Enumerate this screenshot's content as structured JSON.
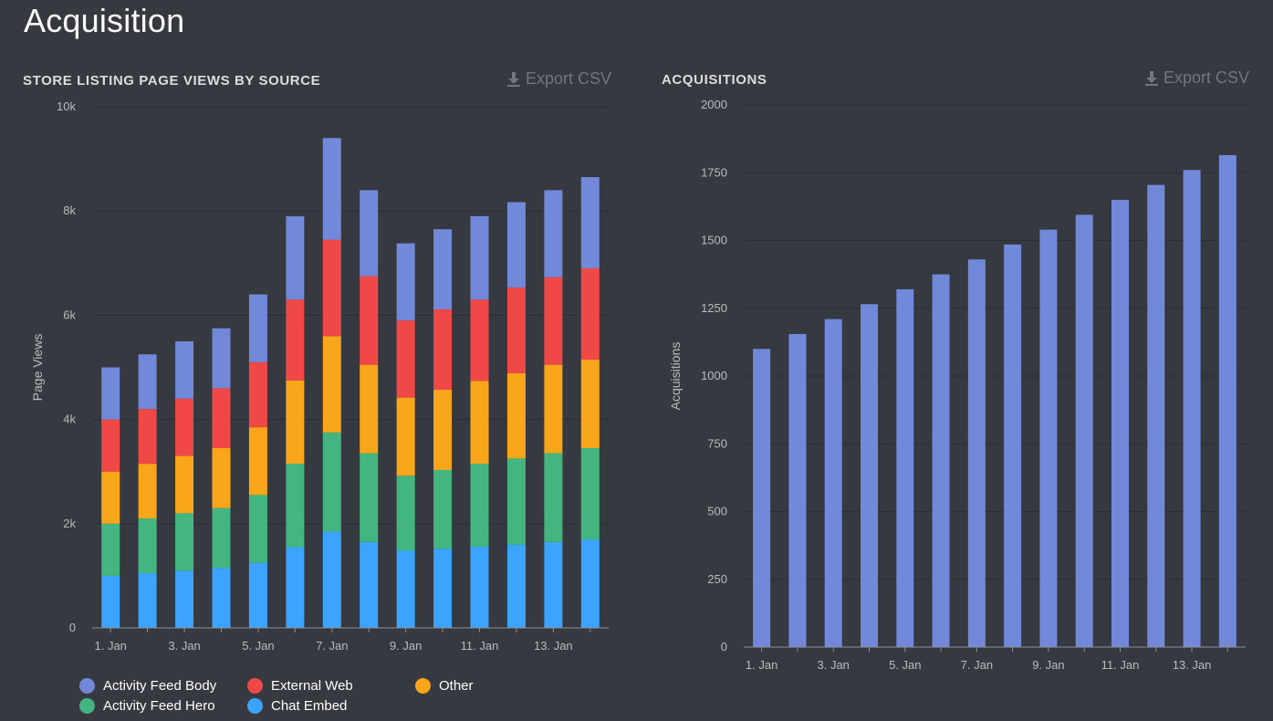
{
  "page": {
    "title": "Acquisition"
  },
  "export_label": "Export CSV",
  "colors": {
    "background": "#36393f",
    "grid": "#2b2e33",
    "axis": "#8e9297",
    "activity_feed_body": "#7289da",
    "external_web": "#f04747",
    "other": "#faa61a",
    "activity_feed_hero": "#43b581",
    "chat_embed": "#3ca4ff"
  },
  "legend": [
    {
      "label": "Activity Feed Body",
      "color": "#7289da"
    },
    {
      "label": "External Web",
      "color": "#f04747"
    },
    {
      "label": "Other",
      "color": "#faa61a"
    },
    {
      "label": "Activity Feed Hero",
      "color": "#43b581"
    },
    {
      "label": "Chat Embed",
      "color": "#3ca4ff"
    }
  ],
  "chart_data": [
    {
      "type": "bar",
      "stacked": true,
      "title": "STORE LISTING PAGE VIEWS BY SOURCE",
      "xlabel": "",
      "ylabel": "Page Views",
      "ylim": [
        0,
        10000
      ],
      "yticks": [
        0,
        2000,
        4000,
        6000,
        8000,
        10000
      ],
      "ytick_labels": [
        "0",
        "2k",
        "4k",
        "6k",
        "8k",
        "10k"
      ],
      "categories": [
        "1. Jan",
        "2. Jan",
        "3. Jan",
        "4. Jan",
        "5. Jan",
        "6. Jan",
        "7. Jan",
        "8. Jan",
        "9. Jan",
        "10. Jan",
        "11. Jan",
        "12. Jan",
        "13. Jan",
        "14. Jan"
      ],
      "xtick_labels": [
        "1. Jan",
        "",
        "3. Jan",
        "",
        "5. Jan",
        "",
        "7. Jan",
        "",
        "9. Jan",
        "",
        "11. Jan",
        "",
        "13. Jan",
        ""
      ],
      "series": [
        {
          "name": "Chat Embed",
          "color": "#3ca4ff",
          "values": [
            1000,
            1050,
            1100,
            1150,
            1250,
            1550,
            1850,
            1650,
            1480,
            1520,
            1560,
            1600,
            1650,
            1700
          ]
        },
        {
          "name": "Activity Feed Hero",
          "color": "#43b581",
          "values": [
            1000,
            1050,
            1100,
            1150,
            1300,
            1600,
            1900,
            1700,
            1440,
            1510,
            1590,
            1650,
            1700,
            1750
          ]
        },
        {
          "name": "Other",
          "color": "#faa61a",
          "values": [
            1000,
            1050,
            1100,
            1150,
            1300,
            1600,
            1850,
            1700,
            1500,
            1540,
            1590,
            1640,
            1700,
            1700
          ]
        },
        {
          "name": "External Web",
          "color": "#f04747",
          "values": [
            1000,
            1050,
            1100,
            1150,
            1250,
            1550,
            1850,
            1700,
            1480,
            1540,
            1560,
            1640,
            1680,
            1750
          ]
        },
        {
          "name": "Activity Feed Body",
          "color": "#7289da",
          "values": [
            1000,
            1050,
            1100,
            1150,
            1300,
            1600,
            1950,
            1650,
            1480,
            1540,
            1600,
            1640,
            1670,
            1750
          ]
        }
      ],
      "grid": true,
      "legend_position": "bottom-left"
    },
    {
      "type": "bar",
      "title": "ACQUISITIONS",
      "xlabel": "",
      "ylabel": "Acquisitions",
      "ylim": [
        0,
        2000
      ],
      "yticks": [
        0,
        250,
        500,
        750,
        1000,
        1250,
        1500,
        1750,
        2000
      ],
      "ytick_labels": [
        "0",
        "250",
        "500",
        "750",
        "1000",
        "1250",
        "1500",
        "1750",
        "2000"
      ],
      "categories": [
        "1. Jan",
        "2. Jan",
        "3. Jan",
        "4. Jan",
        "5. Jan",
        "6. Jan",
        "7. Jan",
        "8. Jan",
        "9. Jan",
        "10. Jan",
        "11. Jan",
        "12. Jan",
        "13. Jan",
        "14. Jan"
      ],
      "xtick_labels": [
        "1. Jan",
        "",
        "3. Jan",
        "",
        "5. Jan",
        "",
        "7. Jan",
        "",
        "9. Jan",
        "",
        "11. Jan",
        "",
        "13. Jan",
        ""
      ],
      "color": "#7289da",
      "values": [
        1100,
        1155,
        1210,
        1265,
        1320,
        1375,
        1430,
        1485,
        1540,
        1595,
        1650,
        1705,
        1760,
        1815
      ],
      "grid": true
    }
  ]
}
